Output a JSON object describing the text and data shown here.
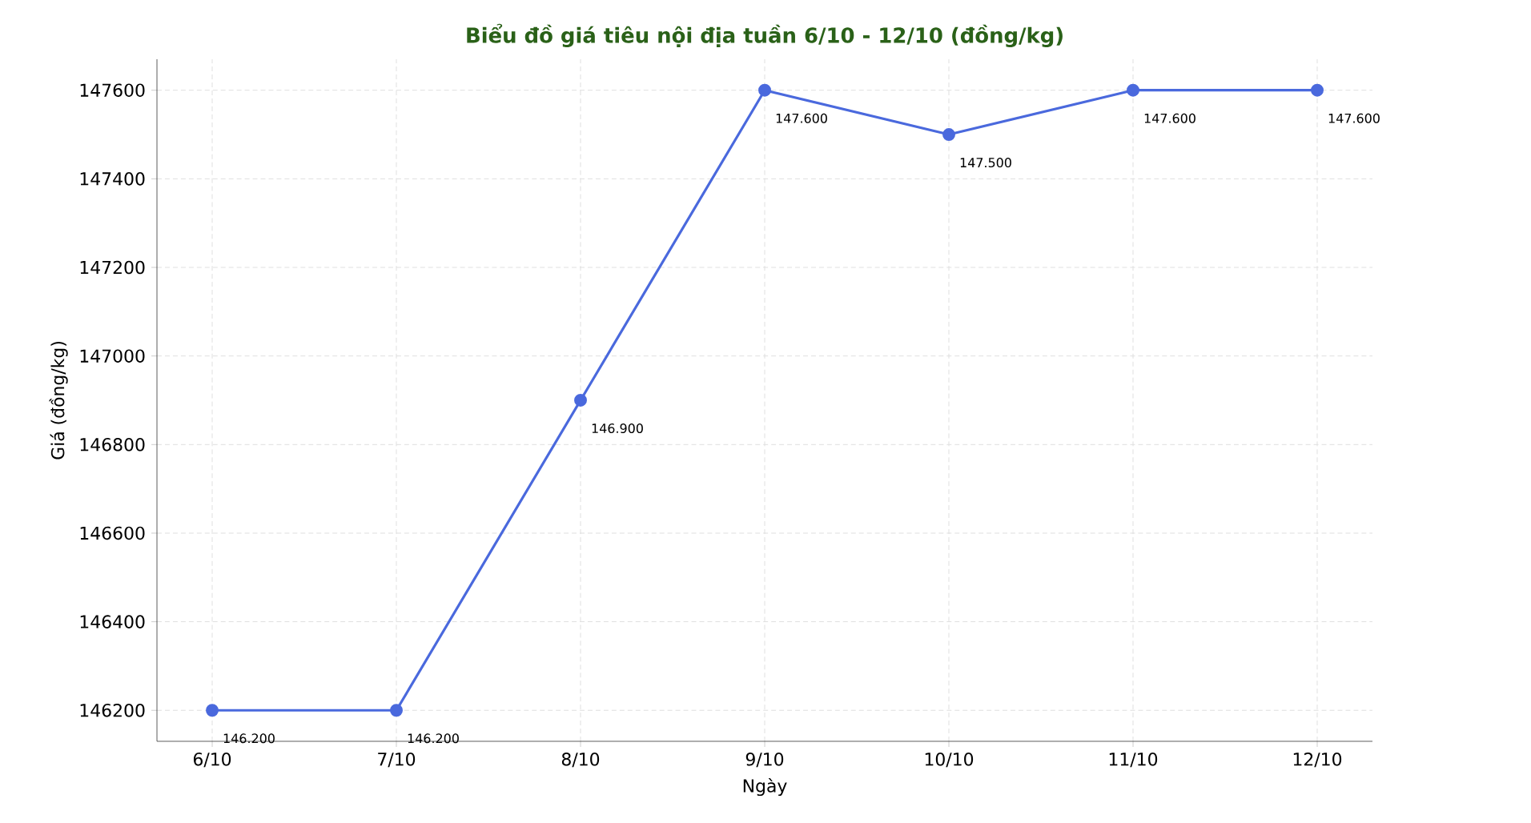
{
  "chart_data": {
    "type": "line",
    "title": "Biểu đồ giá tiêu nội địa tuần 6/10 - 12/10 (đồng/kg)",
    "xlabel": "Ngày",
    "ylabel": "Giá (đồng/kg)",
    "categories": [
      "6/10",
      "7/10",
      "8/10",
      "9/10",
      "10/10",
      "11/10",
      "12/10"
    ],
    "series": [
      {
        "color": "#4a69dd",
        "values": [
          146200,
          146200,
          146900,
          147600,
          147500,
          147600,
          147600
        ],
        "value_labels": [
          "146.200",
          "146.200",
          "146.900",
          "147.600",
          "147.500",
          "147.600",
          "147.600"
        ]
      }
    ],
    "ylim": [
      146130,
      147670
    ],
    "yticks": [
      146200,
      146400,
      146600,
      146800,
      147000,
      147200,
      147400,
      147600
    ],
    "grid": true,
    "marker": "circle",
    "line_style": "solid"
  }
}
